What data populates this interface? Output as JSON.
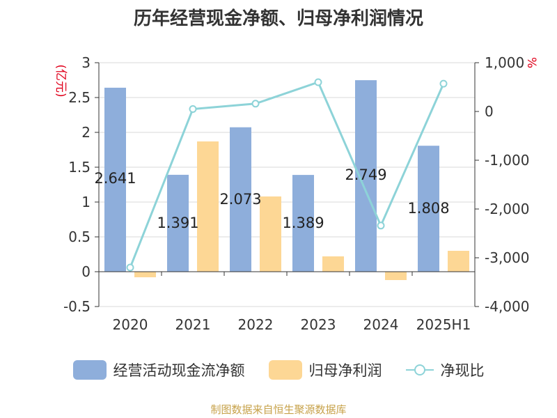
{
  "title": "历年经营现金净额、归母净利润情况",
  "source": "制图数据来自恒生聚源数据库",
  "legend": {
    "series1": "经营活动现金流净额",
    "series2": "归母净利润",
    "series3": "净现比"
  },
  "colors": {
    "series1": "#8eaedb",
    "series2": "#fdd795",
    "series3": "#8dd3d8",
    "unit_label": "#e0001b",
    "source": "#c7a24a"
  },
  "chart_data": {
    "type": "bar",
    "categories": [
      "2020",
      "2021",
      "2022",
      "2023",
      "2024",
      "2025H1"
    ],
    "y_left": {
      "unit": "(亿元)",
      "ylim": [
        -0.5,
        3
      ],
      "ticks": [
        "-0.5",
        "0",
        "0.5",
        "1",
        "1.5",
        "2",
        "2.5",
        "3"
      ],
      "tick_values": [
        -0.5,
        0,
        0.5,
        1,
        1.5,
        2,
        2.5,
        3
      ]
    },
    "y_right": {
      "unit": "%",
      "ylim": [
        -4000,
        1000
      ],
      "ticks": [
        "-4,000",
        "-3,000",
        "-2,000",
        "-1,000",
        "0",
        "1,000"
      ],
      "tick_values": [
        -4000,
        -3000,
        -2000,
        -1000,
        0,
        1000
      ]
    },
    "series": [
      {
        "name": "经营活动现金流净额",
        "axis": "left",
        "type": "bar",
        "values": [
          2.641,
          1.391,
          2.073,
          1.389,
          2.749,
          1.808
        ],
        "labels": [
          "2.641",
          "1.391",
          "2.073",
          "1.389",
          "2.749",
          "1.808"
        ]
      },
      {
        "name": "归母净利润",
        "axis": "left",
        "type": "bar",
        "values": [
          -0.08,
          1.87,
          1.08,
          0.22,
          -0.12,
          0.3
        ]
      },
      {
        "name": "净现比",
        "axis": "right",
        "type": "line",
        "values": [
          -3200,
          50,
          160,
          600,
          -2340,
          570
        ]
      }
    ],
    "grid": true
  }
}
